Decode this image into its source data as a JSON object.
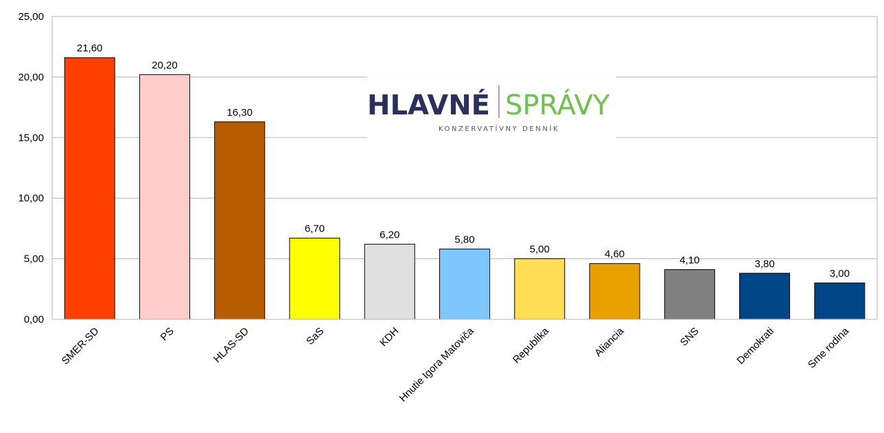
{
  "logo": {
    "word1": "HLAVNÉ",
    "word2": "SPRÁVY",
    "tagline": "KONZERVATÍVNY DENNÍK",
    "word1_color": "#2b2f5e",
    "word2_color": "#6cc24a",
    "divider_color": "#8a8a8a"
  },
  "chart_data": {
    "type": "bar",
    "categories": [
      "SMER-SD",
      "PS",
      "HLAS-SD",
      "SaS",
      "KDH",
      "Hnutie Igora Matoviča",
      "Republika",
      "Aliancia",
      "SNS",
      "Demokrati",
      "Sme rodina"
    ],
    "values": [
      21.6,
      20.2,
      16.3,
      6.7,
      6.2,
      5.8,
      5.0,
      4.6,
      4.1,
      3.8,
      3.0
    ],
    "value_labels": [
      "21,60",
      "20,20",
      "16,30",
      "6,70",
      "6,20",
      "5,80",
      "5,00",
      "4,60",
      "4,10",
      "3,80",
      "3,00"
    ],
    "colors": [
      "#ff4000",
      "#ffcccc",
      "#b85c00",
      "#ffff00",
      "#e0e0e0",
      "#7fc8ff",
      "#ffdd55",
      "#e8a000",
      "#808080",
      "#004586",
      "#004586"
    ],
    "ylim": [
      0,
      25
    ],
    "yticks": [
      0,
      5,
      10,
      15,
      20,
      25
    ],
    "ytick_labels": [
      "0,00",
      "5,00",
      "10,00",
      "15,00",
      "20,00",
      "25,00"
    ],
    "grid": true,
    "title": "",
    "xlabel": "",
    "ylabel": ""
  }
}
